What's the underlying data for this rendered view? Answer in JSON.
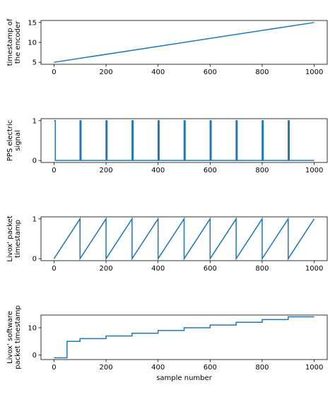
{
  "chart_data": [
    {
      "type": "line",
      "ylabel": [
        "timestamp of",
        "the encoder"
      ],
      "xlim": [
        -50,
        1050
      ],
      "ylim": [
        4.5,
        15.5
      ],
      "xticks": [
        0,
        200,
        400,
        600,
        800,
        1000
      ],
      "yticks": [
        5,
        10,
        15
      ],
      "color": "#1f77b4",
      "series": [
        {
          "kind": "linear",
          "x": [
            0,
            1000
          ],
          "y": [
            5,
            15
          ]
        }
      ]
    },
    {
      "type": "line",
      "ylabel": [
        "PPS electric",
        "signal"
      ],
      "xlim": [
        -50,
        1050
      ],
      "ylim": [
        -0.05,
        1.05
      ],
      "xticks": [
        0,
        200,
        400,
        600,
        800,
        1000
      ],
      "yticks": [
        0,
        1
      ],
      "color": "#1f77b4",
      "series": [
        {
          "kind": "pulses",
          "pulses": [
            [
              0,
              5
            ],
            [
              100,
              104
            ],
            [
              200,
              204
            ],
            [
              300,
              304
            ],
            [
              400,
              404
            ],
            [
              500,
              504
            ],
            [
              600,
              604
            ],
            [
              700,
              704
            ],
            [
              800,
              804
            ],
            [
              900,
              904
            ]
          ],
          "x_end": 1000
        }
      ]
    },
    {
      "type": "line",
      "ylabel": [
        "Livox' packet",
        "timestamp"
      ],
      "xlim": [
        -50,
        1050
      ],
      "ylim": [
        -0.05,
        1.05
      ],
      "xticks": [
        0,
        200,
        400,
        600,
        800,
        1000
      ],
      "yticks": [
        0,
        1
      ],
      "color": "#1f77b4",
      "series": [
        {
          "kind": "sawtooth",
          "period": 100,
          "x_end": 1000,
          "ymax": 1
        }
      ]
    },
    {
      "type": "line",
      "ylabel": [
        "Livox' software",
        "packet timestamp"
      ],
      "xlabel": "sample number",
      "xlim": [
        -50,
        1050
      ],
      "ylim": [
        -1.65,
        14.65
      ],
      "xticks": [
        0,
        200,
        400,
        600,
        800,
        1000
      ],
      "yticks": [
        0,
        10
      ],
      "color": "#1f77b4",
      "series": [
        {
          "kind": "step",
          "points": [
            [
              0,
              -1
            ],
            [
              50,
              -1
            ],
            [
              50,
              5
            ],
            [
              100,
              5
            ],
            [
              100,
              6
            ],
            [
              200,
              6
            ],
            [
              200,
              7
            ],
            [
              300,
              7
            ],
            [
              300,
              8
            ],
            [
              400,
              8
            ],
            [
              400,
              9
            ],
            [
              500,
              9
            ],
            [
              500,
              10
            ],
            [
              600,
              10
            ],
            [
              600,
              11
            ],
            [
              700,
              11
            ],
            [
              700,
              12
            ],
            [
              800,
              12
            ],
            [
              800,
              13
            ],
            [
              900,
              13
            ],
            [
              900,
              14
            ],
            [
              1000,
              14
            ]
          ]
        }
      ]
    }
  ]
}
